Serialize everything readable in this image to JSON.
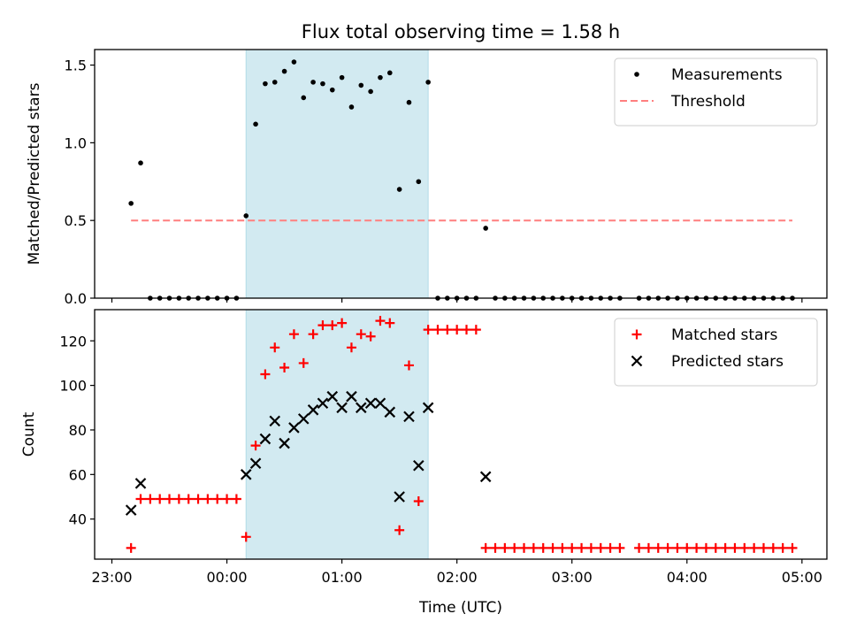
{
  "title": "Flux total observing time = 1.58 h",
  "xlabel": "Time (UTC)",
  "x_ticks": [
    "23:00",
    "00:00",
    "01:00",
    "02:00",
    "03:00",
    "04:00",
    "05:00"
  ],
  "colors": {
    "measurement": "#000000",
    "threshold": "#ff7f7f",
    "matched": "#ff0000",
    "predicted": "#000000",
    "shade": "#add8e6"
  },
  "chart_data": [
    {
      "type": "scatter",
      "panel": "top",
      "ylabel": "Matched/Predicted stars",
      "xlim": [
        "22:51",
        "05:13"
      ],
      "ylim": [
        0,
        1.6
      ],
      "y_ticks": [
        0.0,
        0.5,
        1.0,
        1.5
      ],
      "grid": false,
      "legend": {
        "placement": "upper right",
        "entries": [
          "Measurements",
          "Threshold"
        ]
      },
      "shaded_region": {
        "x0": "00:10",
        "x1": "01:45"
      },
      "threshold": {
        "name": "Threshold",
        "y": 0.5,
        "x0": "23:10",
        "x1": "04:55",
        "style": "dashed"
      },
      "series": [
        {
          "name": "Measurements",
          "marker": "dot",
          "points": [
            [
              "23:10",
              0.61
            ],
            [
              "23:15",
              0.87
            ],
            [
              "23:20",
              0.0
            ],
            [
              "23:25",
              0.0
            ],
            [
              "23:30",
              0.0
            ],
            [
              "23:35",
              0.0
            ],
            [
              "23:40",
              0.0
            ],
            [
              "23:45",
              0.0
            ],
            [
              "23:50",
              0.0
            ],
            [
              "23:55",
              0.0
            ],
            [
              "00:00",
              0.0
            ],
            [
              "00:05",
              0.0
            ],
            [
              "00:10",
              0.53
            ],
            [
              "00:15",
              1.12
            ],
            [
              "00:20",
              1.38
            ],
            [
              "00:25",
              1.39
            ],
            [
              "00:30",
              1.46
            ],
            [
              "00:35",
              1.52
            ],
            [
              "00:40",
              1.29
            ],
            [
              "00:45",
              1.39
            ],
            [
              "00:50",
              1.38
            ],
            [
              "00:55",
              1.34
            ],
            [
              "01:00",
              1.42
            ],
            [
              "01:05",
              1.23
            ],
            [
              "01:10",
              1.37
            ],
            [
              "01:15",
              1.33
            ],
            [
              "01:20",
              1.42
            ],
            [
              "01:25",
              1.45
            ],
            [
              "01:30",
              0.7
            ],
            [
              "01:35",
              1.26
            ],
            [
              "01:40",
              0.75
            ],
            [
              "01:45",
              1.39
            ],
            [
              "01:50",
              0.0
            ],
            [
              "01:55",
              0.0
            ],
            [
              "02:00",
              0.0
            ],
            [
              "02:05",
              0.0
            ],
            [
              "02:10",
              0.0
            ],
            [
              "02:15",
              0.45
            ],
            [
              "02:20",
              0.0
            ],
            [
              "02:25",
              0.0
            ],
            [
              "02:30",
              0.0
            ],
            [
              "02:35",
              0.0
            ],
            [
              "02:40",
              0.0
            ],
            [
              "02:45",
              0.0
            ],
            [
              "02:50",
              0.0
            ],
            [
              "02:55",
              0.0
            ],
            [
              "03:00",
              0.0
            ],
            [
              "03:05",
              0.0
            ],
            [
              "03:10",
              0.0
            ],
            [
              "03:15",
              0.0
            ],
            [
              "03:20",
              0.0
            ],
            [
              "03:25",
              0.0
            ],
            [
              "03:35",
              0.0
            ],
            [
              "03:40",
              0.0
            ],
            [
              "03:45",
              0.0
            ],
            [
              "03:50",
              0.0
            ],
            [
              "03:55",
              0.0
            ],
            [
              "04:00",
              0.0
            ],
            [
              "04:05",
              0.0
            ],
            [
              "04:10",
              0.0
            ],
            [
              "04:15",
              0.0
            ],
            [
              "04:20",
              0.0
            ],
            [
              "04:25",
              0.0
            ],
            [
              "04:30",
              0.0
            ],
            [
              "04:35",
              0.0
            ],
            [
              "04:40",
              0.0
            ],
            [
              "04:45",
              0.0
            ],
            [
              "04:50",
              0.0
            ],
            [
              "04:55",
              0.0
            ]
          ]
        }
      ]
    },
    {
      "type": "scatter",
      "panel": "bottom",
      "ylabel": "Count",
      "xlim": [
        "22:51",
        "05:13"
      ],
      "ylim": [
        22,
        134
      ],
      "y_ticks": [
        40,
        60,
        80,
        100,
        120
      ],
      "grid": false,
      "legend": {
        "placement": "upper right",
        "entries": [
          "Matched stars",
          "Predicted stars"
        ]
      },
      "shaded_region": {
        "x0": "00:10",
        "x1": "01:45"
      },
      "series": [
        {
          "name": "Matched stars",
          "marker": "plus",
          "points": [
            [
              "23:10",
              27
            ],
            [
              "23:15",
              49
            ],
            [
              "23:20",
              49
            ],
            [
              "23:25",
              49
            ],
            [
              "23:30",
              49
            ],
            [
              "23:35",
              49
            ],
            [
              "23:40",
              49
            ],
            [
              "23:45",
              49
            ],
            [
              "23:50",
              49
            ],
            [
              "23:55",
              49
            ],
            [
              "00:00",
              49
            ],
            [
              "00:05",
              49
            ],
            [
              "00:10",
              32
            ],
            [
              "00:15",
              73
            ],
            [
              "00:20",
              105
            ],
            [
              "00:25",
              117
            ],
            [
              "00:30",
              108
            ],
            [
              "00:35",
              123
            ],
            [
              "00:40",
              110
            ],
            [
              "00:45",
              123
            ],
            [
              "00:50",
              127
            ],
            [
              "00:55",
              127
            ],
            [
              "01:00",
              128
            ],
            [
              "01:05",
              117
            ],
            [
              "01:10",
              123
            ],
            [
              "01:15",
              122
            ],
            [
              "01:20",
              129
            ],
            [
              "01:25",
              128
            ],
            [
              "01:30",
              35
            ],
            [
              "01:35",
              109
            ],
            [
              "01:40",
              48
            ],
            [
              "01:45",
              125
            ],
            [
              "01:50",
              125
            ],
            [
              "01:55",
              125
            ],
            [
              "02:00",
              125
            ],
            [
              "02:05",
              125
            ],
            [
              "02:10",
              125
            ],
            [
              "02:15",
              27
            ],
            [
              "02:20",
              27
            ],
            [
              "02:25",
              27
            ],
            [
              "02:30",
              27
            ],
            [
              "02:35",
              27
            ],
            [
              "02:40",
              27
            ],
            [
              "02:45",
              27
            ],
            [
              "02:50",
              27
            ],
            [
              "02:55",
              27
            ],
            [
              "03:00",
              27
            ],
            [
              "03:05",
              27
            ],
            [
              "03:10",
              27
            ],
            [
              "03:15",
              27
            ],
            [
              "03:20",
              27
            ],
            [
              "03:25",
              27
            ],
            [
              "03:35",
              27
            ],
            [
              "03:40",
              27
            ],
            [
              "03:45",
              27
            ],
            [
              "03:50",
              27
            ],
            [
              "03:55",
              27
            ],
            [
              "04:00",
              27
            ],
            [
              "04:05",
              27
            ],
            [
              "04:10",
              27
            ],
            [
              "04:15",
              27
            ],
            [
              "04:20",
              27
            ],
            [
              "04:25",
              27
            ],
            [
              "04:30",
              27
            ],
            [
              "04:35",
              27
            ],
            [
              "04:40",
              27
            ],
            [
              "04:45",
              27
            ],
            [
              "04:50",
              27
            ],
            [
              "04:55",
              27
            ]
          ]
        },
        {
          "name": "Predicted stars",
          "marker": "x",
          "points": [
            [
              "23:10",
              44
            ],
            [
              "23:15",
              56
            ],
            [
              "00:10",
              60
            ],
            [
              "00:15",
              65
            ],
            [
              "00:20",
              76
            ],
            [
              "00:25",
              84
            ],
            [
              "00:30",
              74
            ],
            [
              "00:35",
              81
            ],
            [
              "00:40",
              85
            ],
            [
              "00:45",
              89
            ],
            [
              "00:50",
              92
            ],
            [
              "00:55",
              95
            ],
            [
              "01:00",
              90
            ],
            [
              "01:05",
              95
            ],
            [
              "01:10",
              90
            ],
            [
              "01:15",
              92
            ],
            [
              "01:20",
              92
            ],
            [
              "01:25",
              88
            ],
            [
              "01:30",
              50
            ],
            [
              "01:35",
              86
            ],
            [
              "01:40",
              64
            ],
            [
              "01:45",
              90
            ],
            [
              "02:15",
              59
            ]
          ]
        }
      ]
    }
  ]
}
